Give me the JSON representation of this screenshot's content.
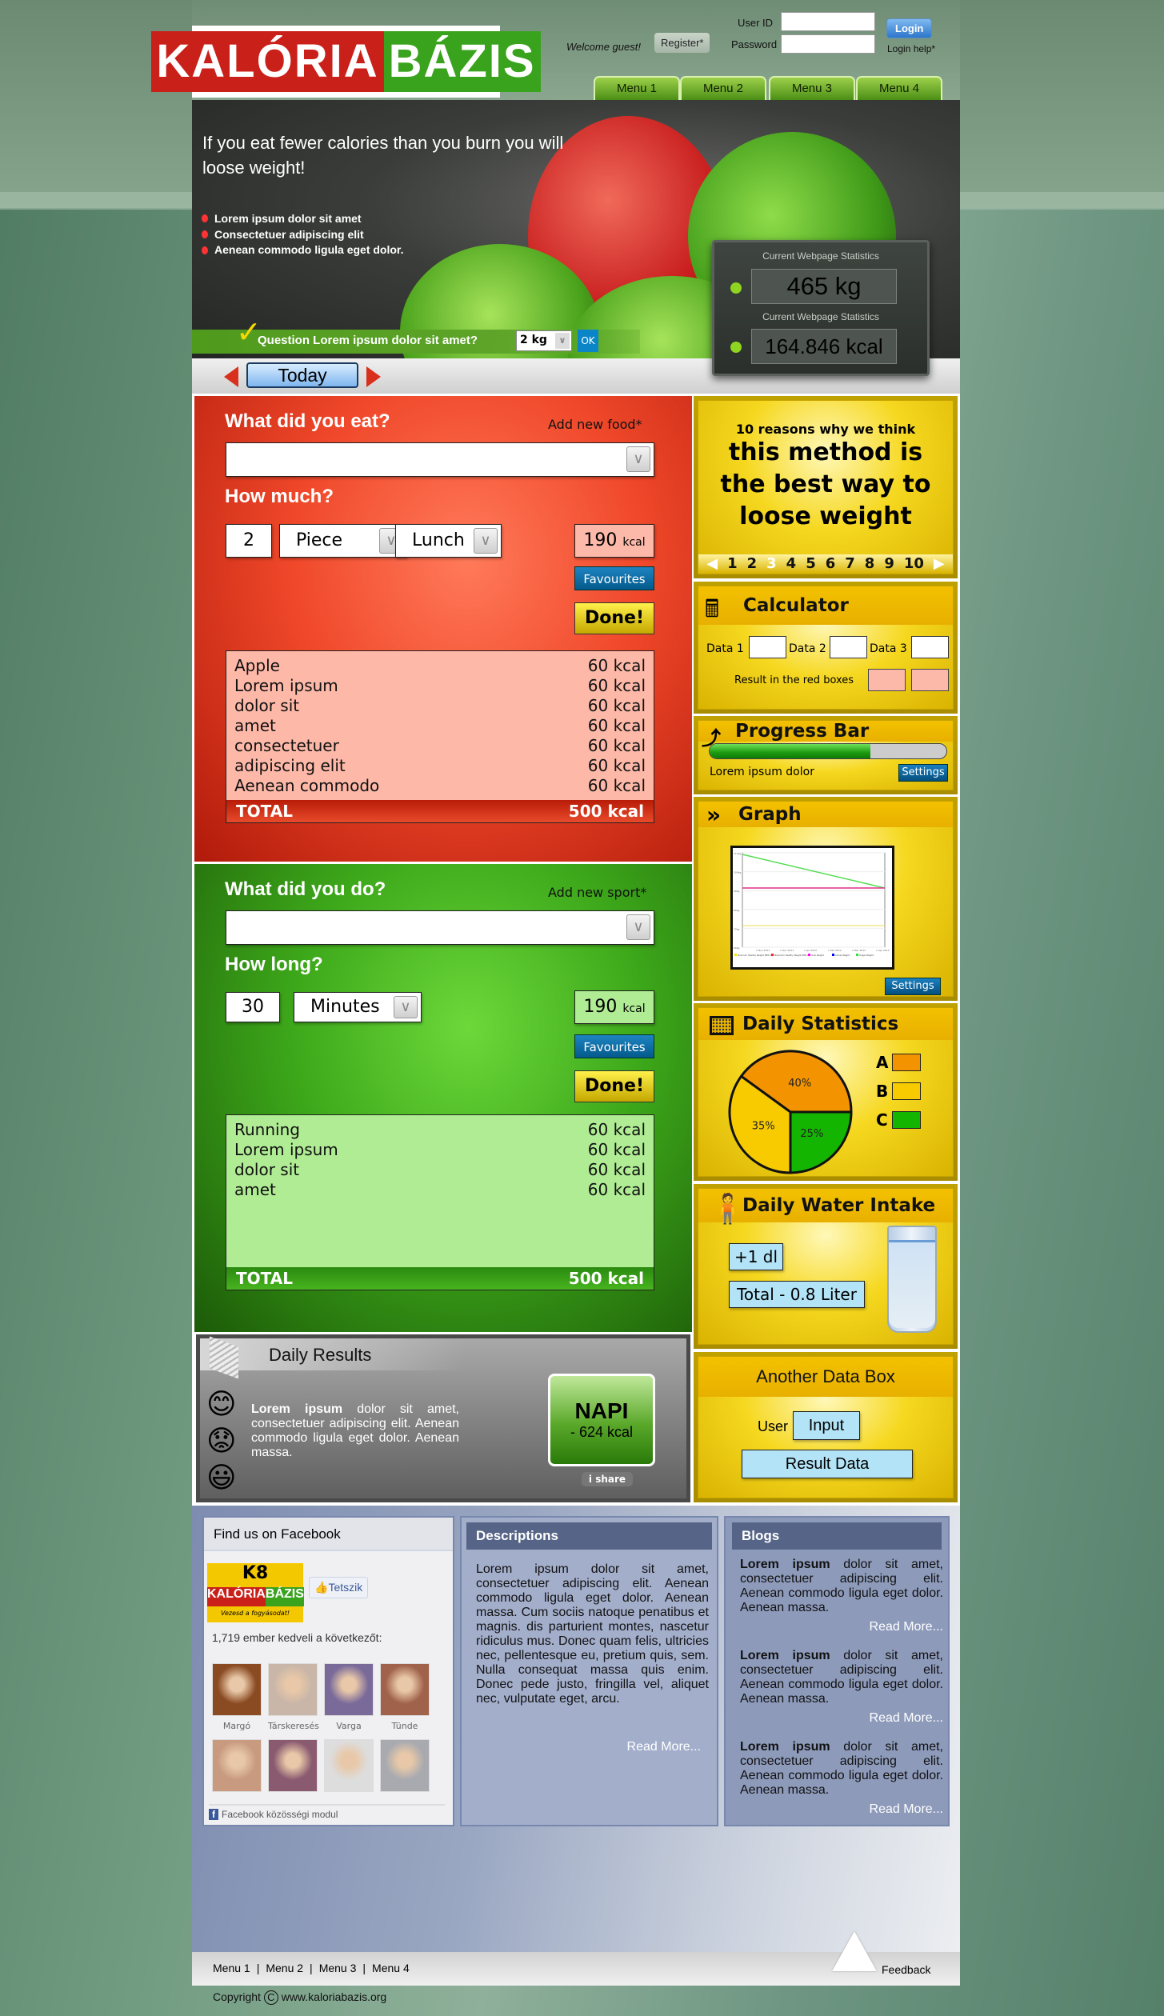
{
  "header": {
    "logo_text_red": "KALÓRIA",
    "logo_text_green": "BÁZIS",
    "welcome": "Welcome guest!",
    "register": "Register*",
    "user_id_label": "User ID",
    "password_label": "Password",
    "user_id_value": "",
    "password_value": "",
    "login": "Login",
    "login_help": "Login help*"
  },
  "nav": {
    "items": [
      "Menu 1",
      "Menu 2",
      "Menu 3",
      "Menu 4"
    ]
  },
  "banner": {
    "headline": "If you eat fewer calories than you burn you will loose weight!",
    "bullets": [
      "Lorem ipsum dolor sit amet",
      "Consectetuer adipiscing elit",
      "Aenean commodo ligula eget dolor."
    ],
    "question": "Question Lorem ipsum dolor sit amet?",
    "question_value": "2 kg",
    "ok": "OK"
  },
  "stats": {
    "label1": "Current Webpage Statistics",
    "value1": "465 kg",
    "label2": "Current Webpage Statistics",
    "value2": "164.846 kcal"
  },
  "today": {
    "label": "Today"
  },
  "food": {
    "title": "What did you eat?",
    "add_link": "Add new food*",
    "select_value": "",
    "how_label": "How much?",
    "qty": "2",
    "unit": "Piece",
    "meal": "Lunch",
    "kcal_value": "190",
    "kcal_unit": "kcal",
    "favourites": "Favourites",
    "done": "Done!",
    "items": [
      {
        "name": "Apple",
        "kcal": "60 kcal"
      },
      {
        "name": "Lorem ipsum",
        "kcal": "60 kcal"
      },
      {
        "name": "dolor sit",
        "kcal": "60 kcal"
      },
      {
        "name": "amet",
        "kcal": "60 kcal"
      },
      {
        "name": "consectetuer",
        "kcal": "60 kcal"
      },
      {
        "name": "adipiscing elit",
        "kcal": "60 kcal"
      },
      {
        "name": "Aenean commodo",
        "kcal": "60 kcal"
      }
    ],
    "total_label": "TOTAL",
    "total_value": "500 kcal"
  },
  "sport": {
    "title": "What did you do?",
    "add_link": "Add new sport*",
    "select_value": "",
    "how_label": "How long?",
    "qty": "30",
    "unit": "Minutes",
    "kcal_value": "190",
    "kcal_unit": "kcal",
    "favourites": "Favourites",
    "done": "Done!",
    "items": [
      {
        "name": "Running",
        "kcal": "60 kcal"
      },
      {
        "name": "Lorem ipsum",
        "kcal": "60 kcal"
      },
      {
        "name": "dolor sit",
        "kcal": "60 kcal"
      },
      {
        "name": "amet",
        "kcal": "60 kcal"
      }
    ],
    "total_label": "TOTAL",
    "total_value": "500 kcal"
  },
  "daily_results": {
    "title": "Daily Results",
    "text_bold": "Lorem ipsum",
    "text": " dolor sit amet, consectetuer adipiscing elit. Aenean commodo ligula eget dolor. Aenean massa.",
    "napi_title": "NAPI",
    "napi_value": "- 624 kcal",
    "share": "i share"
  },
  "reasons": {
    "subtitle": "10 reasons why we think",
    "title": "this method is the best way to loose weight",
    "pages": [
      "1",
      "2",
      "3",
      "4",
      "5",
      "6",
      "7",
      "8",
      "9",
      "10"
    ],
    "current_page": "3"
  },
  "calculator": {
    "title": "Calculator",
    "data1": "Data 1",
    "data2": "Data 2",
    "data3": "Data 3",
    "result_label": "Result in the red boxes"
  },
  "progress": {
    "title": "Progress Bar",
    "caption": "Lorem ipsum dolor",
    "settings": "Settings",
    "percent": 68
  },
  "graph": {
    "title": "Graph",
    "settings": "Settings",
    "y_ticks": [
      "110kg",
      "100kg",
      "90kg",
      "80kg",
      "70kg",
      "60kg"
    ],
    "x_ticks": [
      "1 Nov 2011",
      "1 Dec 2011",
      "1 Jan 2012",
      "1 Feb 2012",
      "1 Mar 2012",
      "1 Apr 2012"
    ],
    "legend": [
      {
        "name": "Minimum Healthy Weight (BMI 20)",
        "color": "#f5e400"
      },
      {
        "name": "Maximum Healthy Weight (BMI 25)",
        "color": "#ff2020"
      },
      {
        "name": "Goal Weight",
        "color": "#ff00ff"
      },
      {
        "name": "Actual Weight",
        "color": "#0000ff"
      },
      {
        "name": "Target Weight",
        "color": "#33dd33"
      }
    ]
  },
  "chart_data": {
    "type": "pie",
    "title": "Daily Statistics",
    "slices": [
      {
        "label": "A",
        "value": 40,
        "color": "#f39300"
      },
      {
        "label": "B",
        "value": 35,
        "color": "#f7cb00"
      },
      {
        "label": "C",
        "value": 25,
        "color": "#13b500"
      }
    ],
    "value_labels": [
      "40%",
      "35%",
      "25%"
    ],
    "legend_placement": "right"
  },
  "water": {
    "title": "Daily Water Intake",
    "add": "+1 dl",
    "total": "Total - 0.8 Liter"
  },
  "another": {
    "title": "Another Data Box",
    "user_label": "User",
    "input": "Input",
    "result": "Result Data"
  },
  "facebook": {
    "title": "Find us on Facebook",
    "like": "Tetszik",
    "count_text": "1,719 ember kedveli a következőt:",
    "people": [
      "Margó",
      "Társkeresés",
      "Varga",
      "Tünde"
    ],
    "footer": "Facebook közösségi modul",
    "logo_slogan": "Vezesd a fogyásodat!"
  },
  "descriptions": {
    "title": "Descriptions",
    "text": "Lorem ipsum dolor sit amet, consectetuer adipiscing elit. Aenean commodo ligula eget dolor. Aenean massa. Cum sociis natoque penatibus et magnis. dis parturient montes, nascetur ridiculus mus. Donec quam felis, ultricies nec, pellentesque eu, pretium quis, sem. Nulla consequat massa quis enim. Donec pede justo, fringilla vel, aliquet nec, vulputate eget, arcu.",
    "read_more": "Read More..."
  },
  "blogs": {
    "title": "Blogs",
    "posts": [
      {
        "bold": "Lorem ipsum",
        "text": " dolor sit amet, consectetuer adipiscing elit. Aenean commodo ligula eget dolor. Aenean massa.",
        "read_more": "Read More..."
      },
      {
        "bold": "Lorem ipsum",
        "text": " dolor sit amet, consectetuer adipiscing elit. Aenean commodo ligula eget dolor. Aenean massa.",
        "read_more": "Read More..."
      },
      {
        "bold": "Lorem ipsum",
        "text": " dolor sit amet, consectetuer adipiscing elit. Aenean commodo ligula eget dolor. Aenean massa.",
        "read_more": "Read More..."
      }
    ]
  },
  "footer": {
    "menu": [
      "Menu 1",
      "Menu 2",
      "Menu 3",
      "Menu 4"
    ],
    "feedback": "Feedback",
    "copyright": "Copyright",
    "copyright_symbol": "C",
    "site": "www.kaloriabazis.org"
  }
}
